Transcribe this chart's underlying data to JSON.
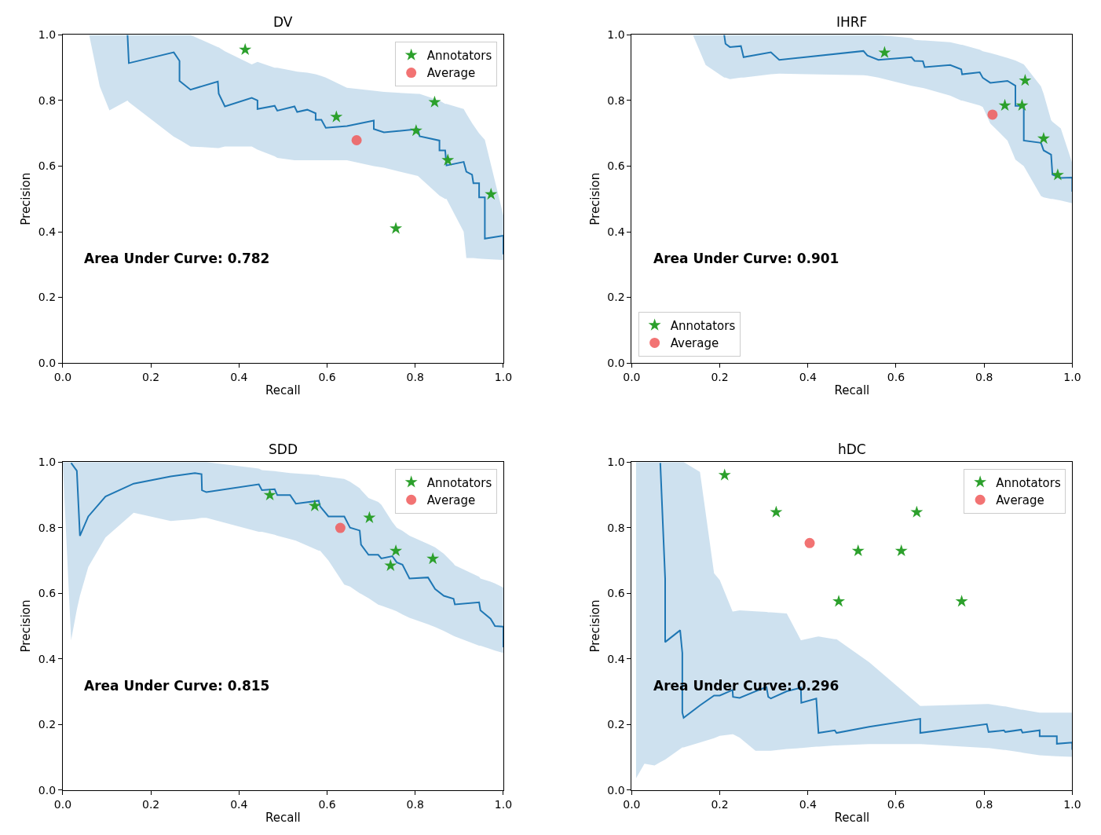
{
  "chart_data": [
    {
      "type": "line",
      "title": "DV",
      "xlabel": "Recall",
      "ylabel": "Precision",
      "xlim": [
        0,
        1
      ],
      "ylim": [
        0,
        1
      ],
      "xticks": [
        {
          "value": 0,
          "label": "0.0"
        },
        {
          "value": 0.2,
          "label": "0.2"
        },
        {
          "value": 0.4,
          "label": "0.4"
        },
        {
          "value": 0.6,
          "label": "0.6"
        },
        {
          "value": 0.8,
          "label": "0.8"
        },
        {
          "value": 1,
          "label": "1.0"
        }
      ],
      "yticks": [
        {
          "value": 0,
          "label": "0.0"
        },
        {
          "value": 0.2,
          "label": "0.2"
        },
        {
          "value": 0.4,
          "label": "0.4"
        },
        {
          "value": 0.6,
          "label": "0.6"
        },
        {
          "value": 0.8,
          "label": "0.8"
        },
        {
          "value": 1,
          "label": "1.0"
        }
      ],
      "grid": false,
      "legend": "top right",
      "annotations": [
        "Area Under Curve: 0.782"
      ],
      "series": [
        {
          "color": "#1f77b4",
          "x": [
            0.06,
            0.084,
            0.106,
            0.147,
            0.15,
            0.252,
            0.265,
            0.265,
            0.29,
            0.352,
            0.354,
            0.368,
            0.429,
            0.442,
            0.442,
            0.481,
            0.487,
            0.526,
            0.532,
            0.555,
            0.574,
            0.574,
            0.587,
            0.597,
            0.645,
            0.706,
            0.706,
            0.729,
            0.806,
            0.81,
            0.855,
            0.855,
            0.868,
            0.871,
            0.91,
            0.916,
            0.929,
            0.932,
            0.945,
            0.945,
            0.958,
            0.958,
            1.0,
            1.0
          ],
          "values": [
            null,
            null,
            null,
            1.0,
            0.914,
            0.947,
            0.921,
            0.86,
            0.833,
            0.858,
            0.821,
            0.782,
            0.808,
            0.8,
            0.774,
            0.784,
            0.769,
            0.782,
            0.765,
            0.772,
            0.761,
            0.741,
            0.741,
            0.717,
            0.722,
            0.739,
            0.713,
            0.703,
            0.713,
            0.691,
            0.678,
            0.648,
            0.648,
            0.602,
            0.613,
            0.583,
            0.574,
            0.548,
            0.548,
            0.505,
            0.505,
            0.379,
            0.388,
            0.331
          ],
          "lower": [
            1.0,
            0.843,
            0.77,
            0.8,
            0.795,
            0.69,
            0.68,
            0.68,
            0.66,
            0.655,
            0.655,
            0.66,
            0.66,
            0.65,
            0.65,
            0.63,
            0.625,
            0.618,
            0.618,
            0.618,
            0.618,
            0.618,
            0.618,
            0.618,
            0.618,
            0.6,
            0.6,
            0.595,
            0.57,
            0.565,
            0.51,
            0.51,
            0.5,
            0.5,
            0.4,
            0.32,
            0.32,
            0.32,
            0.318,
            0.318,
            0.317,
            0.317,
            0.314,
            0.314
          ],
          "upper": [
            1.0,
            1.0,
            1.0,
            1.0,
            1.0,
            1.0,
            1.0,
            1.0,
            1.0,
            0.963,
            0.962,
            0.95,
            0.91,
            0.918,
            0.918,
            0.9,
            0.9,
            0.89,
            0.888,
            0.885,
            0.88,
            0.88,
            0.875,
            0.87,
            0.839,
            0.83,
            0.83,
            0.826,
            0.82,
            0.82,
            0.8,
            0.8,
            0.79,
            0.79,
            0.774,
            0.76,
            0.731,
            0.725,
            0.7,
            0.7,
            0.68,
            0.68,
            0.45,
            0.45
          ]
        },
        {
          "type": "scatter",
          "name": "Annotators",
          "color": "#2ca02c",
          "marker": "star",
          "x": [
            0.414,
            0.621,
            0.844,
            0.802,
            0.874,
            0.972,
            0.756
          ],
          "values": [
            0.955,
            0.75,
            0.795,
            0.708,
            0.618,
            0.514,
            0.41
          ]
        },
        {
          "type": "scatter",
          "name": "Average",
          "color": "#f05a5a",
          "marker": "circle",
          "x": [
            0.667
          ],
          "values": [
            0.679
          ]
        }
      ]
    },
    {
      "type": "line",
      "title": "IHRF",
      "xlabel": "Recall",
      "ylabel": "Precision",
      "xlim": [
        0,
        1
      ],
      "ylim": [
        0,
        1
      ],
      "xticks": [
        {
          "value": 0,
          "label": "0.0"
        },
        {
          "value": 0.2,
          "label": "0.2"
        },
        {
          "value": 0.4,
          "label": "0.4"
        },
        {
          "value": 0.6,
          "label": "0.6"
        },
        {
          "value": 0.8,
          "label": "0.8"
        },
        {
          "value": 1,
          "label": "1.0"
        }
      ],
      "yticks": [
        {
          "value": 0,
          "label": "0.0"
        },
        {
          "value": 0.2,
          "label": "0.2"
        },
        {
          "value": 0.4,
          "label": "0.4"
        },
        {
          "value": 0.6,
          "label": "0.6"
        },
        {
          "value": 0.8,
          "label": "0.8"
        },
        {
          "value": 1,
          "label": "1.0"
        }
      ],
      "grid": false,
      "legend": "bottom left",
      "annotations": [
        "Area Under Curve: 0.901"
      ],
      "series": [
        {
          "color": "#1f77b4",
          "x": [
            0.139,
            0.168,
            0.21,
            0.213,
            0.223,
            0.248,
            0.254,
            0.316,
            0.335,
            0.526,
            0.535,
            0.56,
            0.635,
            0.642,
            0.661,
            0.665,
            0.723,
            0.748,
            0.75,
            0.79,
            0.797,
            0.814,
            0.853,
            0.871,
            0.871,
            0.89,
            0.89,
            0.929,
            0.935,
            0.952,
            0.955,
            0.974,
            1.0,
            1.0
          ],
          "values": [
            null,
            null,
            1.0,
            0.973,
            0.963,
            0.966,
            0.932,
            0.947,
            0.924,
            0.951,
            0.937,
            0.924,
            0.932,
            0.921,
            0.92,
            0.902,
            0.908,
            0.895,
            0.88,
            0.886,
            0.869,
            0.854,
            0.86,
            0.845,
            0.784,
            0.784,
            0.678,
            0.671,
            0.648,
            0.635,
            0.574,
            0.564,
            0.565,
            0.522
          ],
          "lower": [
            1.0,
            0.908,
            0.87,
            0.87,
            0.865,
            0.87,
            0.87,
            0.88,
            0.882,
            0.877,
            0.876,
            0.87,
            0.845,
            0.843,
            0.838,
            0.837,
            0.815,
            0.8,
            0.8,
            0.785,
            0.78,
            0.73,
            0.678,
            0.62,
            0.62,
            0.6,
            0.6,
            0.509,
            0.505,
            0.5,
            0.5,
            0.495,
            0.487,
            0.487
          ],
          "upper": [
            1.0,
            1.0,
            1.0,
            1.0,
            1.0,
            1.0,
            1.0,
            1.0,
            1.0,
            1.0,
            1.0,
            1.0,
            0.99,
            0.985,
            0.983,
            0.983,
            0.978,
            0.97,
            0.97,
            0.955,
            0.95,
            0.945,
            0.93,
            0.922,
            0.922,
            0.91,
            0.91,
            0.843,
            0.82,
            0.74,
            0.735,
            0.715,
            0.609,
            0.609
          ]
        },
        {
          "type": "scatter",
          "name": "Annotators",
          "color": "#2ca02c",
          "marker": "star",
          "x": [
            0.574,
            0.893,
            0.847,
            0.886,
            0.935,
            0.967
          ],
          "values": [
            0.946,
            0.861,
            0.785,
            0.785,
            0.684,
            0.573
          ]
        },
        {
          "type": "scatter",
          "name": "Average",
          "color": "#f05a5a",
          "marker": "circle",
          "x": [
            0.819
          ],
          "values": [
            0.757
          ]
        }
      ]
    },
    {
      "type": "line",
      "title": "SDD",
      "xlabel": "Recall",
      "ylabel": "Precision",
      "xlim": [
        0,
        1
      ],
      "ylim": [
        0,
        1
      ],
      "xticks": [
        {
          "value": 0,
          "label": "0.0"
        },
        {
          "value": 0.2,
          "label": "0.2"
        },
        {
          "value": 0.4,
          "label": "0.4"
        },
        {
          "value": 0.6,
          "label": "0.6"
        },
        {
          "value": 0.8,
          "label": "0.8"
        },
        {
          "value": 1,
          "label": "1.0"
        }
      ],
      "yticks": [
        {
          "value": 0,
          "label": "0.0"
        },
        {
          "value": 0.2,
          "label": "0.2"
        },
        {
          "value": 0.4,
          "label": "0.4"
        },
        {
          "value": 0.6,
          "label": "0.6"
        },
        {
          "value": 0.8,
          "label": "0.8"
        },
        {
          "value": 1,
          "label": "1.0"
        }
      ],
      "grid": false,
      "legend": "top right",
      "annotations": [
        "Area Under Curve: 0.815"
      ],
      "series": [
        {
          "color": "#1f77b4",
          "x": [
            0.0,
            0.019,
            0.032,
            0.039,
            0.058,
            0.097,
            0.161,
            0.245,
            0.3,
            0.315,
            0.316,
            0.326,
            0.445,
            0.452,
            0.481,
            0.487,
            0.516,
            0.529,
            0.581,
            0.584,
            0.603,
            0.639,
            0.652,
            0.674,
            0.677,
            0.694,
            0.716,
            0.723,
            0.748,
            0.758,
            0.771,
            0.787,
            0.829,
            0.845,
            0.865,
            0.887,
            0.89,
            0.945,
            0.948,
            0.971,
            0.981,
            1.0,
            1.0
          ],
          "values": [
            null,
            0.997,
            0.973,
            0.775,
            0.834,
            0.895,
            0.934,
            0.956,
            0.966,
            0.963,
            0.914,
            0.908,
            0.932,
            0.914,
            0.917,
            0.899,
            0.899,
            0.873,
            0.882,
            0.865,
            0.834,
            0.834,
            0.8,
            0.791,
            0.748,
            0.717,
            0.717,
            0.706,
            0.713,
            0.694,
            0.687,
            0.645,
            0.648,
            0.613,
            0.592,
            0.583,
            0.566,
            0.572,
            0.548,
            0.522,
            0.5,
            0.498,
            0.435
          ],
          "lower": [
            1.0,
            0.457,
            0.55,
            0.592,
            0.68,
            0.77,
            0.845,
            0.82,
            0.826,
            0.83,
            0.83,
            0.83,
            0.787,
            0.787,
            0.778,
            0.775,
            0.765,
            0.76,
            0.73,
            0.73,
            0.7,
            0.626,
            0.62,
            0.6,
            0.598,
            0.585,
            0.565,
            0.562,
            0.55,
            0.545,
            0.535,
            0.525,
            0.505,
            0.497,
            0.485,
            0.47,
            0.468,
            0.44,
            0.44,
            0.43,
            0.425,
            0.418,
            0.418
          ],
          "upper": [
            1.0,
            1.0,
            1.0,
            1.0,
            1.0,
            1.0,
            1.0,
            1.0,
            1.0,
            1.0,
            1.0,
            1.0,
            0.98,
            0.975,
            0.972,
            0.971,
            0.966,
            0.965,
            0.96,
            0.958,
            0.955,
            0.948,
            0.94,
            0.92,
            0.915,
            0.89,
            0.878,
            0.87,
            0.817,
            0.8,
            0.79,
            0.775,
            0.75,
            0.74,
            0.72,
            0.69,
            0.685,
            0.65,
            0.645,
            0.635,
            0.63,
            0.617,
            0.617
          ]
        },
        {
          "type": "scatter",
          "name": "Annotators",
          "color": "#2ca02c",
          "marker": "star",
          "x": [
            0.47,
            0.572,
            0.696,
            0.756,
            0.744,
            0.84
          ],
          "values": [
            0.899,
            0.866,
            0.83,
            0.729,
            0.684,
            0.705
          ]
        },
        {
          "type": "scatter",
          "name": "Average",
          "color": "#f05a5a",
          "marker": "circle",
          "x": [
            0.63
          ],
          "values": [
            0.799
          ]
        }
      ]
    },
    {
      "type": "line",
      "title": "hDC",
      "xlabel": "Recall",
      "ylabel": "Precision",
      "xlim": [
        0,
        1
      ],
      "ylim": [
        0,
        1
      ],
      "xticks": [
        {
          "value": 0,
          "label": "0.0"
        },
        {
          "value": 0.2,
          "label": "0.2"
        },
        {
          "value": 0.4,
          "label": "0.4"
        },
        {
          "value": 0.6,
          "label": "0.6"
        },
        {
          "value": 0.8,
          "label": "0.8"
        },
        {
          "value": 1,
          "label": "1.0"
        }
      ],
      "yticks": [
        {
          "value": 0,
          "label": "0.0"
        },
        {
          "value": 0.2,
          "label": "0.2"
        },
        {
          "value": 0.4,
          "label": "0.4"
        },
        {
          "value": 0.6,
          "label": "0.6"
        },
        {
          "value": 0.8,
          "label": "0.8"
        },
        {
          "value": 1,
          "label": "1.0"
        }
      ],
      "grid": false,
      "legend": "top right",
      "annotations": [
        "Area Under Curve: 0.296"
      ],
      "series": [
        {
          "color": "#1f77b4",
          "x": [
            0.01,
            0.029,
            0.052,
            0.065,
            0.076,
            0.076,
            0.11,
            0.115,
            0.115,
            0.118,
            0.155,
            0.187,
            0.2,
            0.229,
            0.23,
            0.245,
            0.281,
            0.306,
            0.31,
            0.316,
            0.352,
            0.384,
            0.385,
            0.419,
            0.424,
            0.461,
            0.465,
            0.539,
            0.655,
            0.655,
            0.806,
            0.81,
            0.845,
            0.848,
            0.884,
            0.887,
            0.926,
            0.926,
            0.965,
            0.965,
            1.0,
            1.0
          ],
          "values": [
            null,
            null,
            null,
            0.997,
            0.644,
            0.451,
            0.487,
            0.418,
            0.236,
            0.22,
            0.258,
            0.288,
            0.288,
            0.305,
            0.284,
            0.281,
            0.301,
            0.314,
            0.284,
            0.279,
            0.301,
            0.312,
            0.266,
            0.279,
            0.174,
            0.182,
            0.174,
            0.193,
            0.217,
            0.174,
            0.201,
            0.177,
            0.182,
            0.177,
            0.184,
            0.175,
            0.182,
            0.164,
            0.164,
            0.141,
            0.145,
            0.123
          ],
          "lower": [
            0.036,
            0.08,
            0.075,
            0.085,
            0.093,
            0.093,
            0.125,
            0.13,
            0.13,
            0.13,
            0.145,
            0.158,
            0.165,
            0.17,
            0.17,
            0.16,
            0.12,
            0.12,
            0.12,
            0.12,
            0.125,
            0.128,
            0.128,
            0.132,
            0.132,
            0.136,
            0.136,
            0.14,
            0.14,
            0.14,
            0.128,
            0.128,
            0.122,
            0.122,
            0.115,
            0.114,
            0.106,
            0.106,
            0.103,
            0.103,
            0.101,
            0.101
          ],
          "upper": [
            1.0,
            1.0,
            1.0,
            1.0,
            1.0,
            1.0,
            1.0,
            1.0,
            1.0,
            1.0,
            0.97,
            0.661,
            0.64,
            0.544,
            0.544,
            0.548,
            0.545,
            0.543,
            0.542,
            0.542,
            0.538,
            0.457,
            0.457,
            0.467,
            0.468,
            0.46,
            0.46,
            0.39,
            0.256,
            0.256,
            0.262,
            0.262,
            0.255,
            0.255,
            0.245,
            0.245,
            0.236,
            0.236,
            0.236,
            0.236,
            0.236,
            0.236
          ]
        },
        {
          "type": "scatter",
          "name": "Annotators",
          "color": "#2ca02c",
          "marker": "star",
          "x": [
            0.211,
            0.328,
            0.647,
            0.514,
            0.612,
            0.47,
            0.749
          ],
          "values": [
            0.96,
            0.847,
            0.847,
            0.729,
            0.729,
            0.575,
            0.575
          ]
        },
        {
          "type": "scatter",
          "name": "Average",
          "color": "#f05a5a",
          "marker": "circle",
          "x": [
            0.404
          ],
          "values": [
            0.753
          ]
        }
      ]
    }
  ]
}
